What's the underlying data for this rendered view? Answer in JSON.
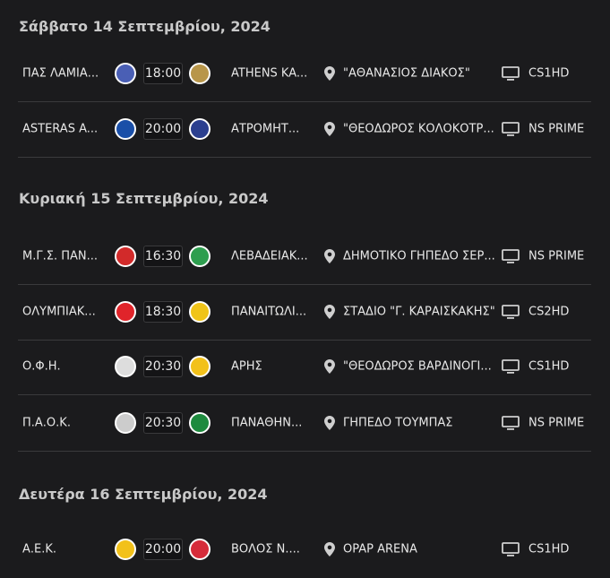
{
  "days": [
    {
      "title": "Σάββατο 14 Σεπτεμβρίου, 2024",
      "matches": [
        {
          "home": "ΠΑΣ ΛΑΜΙΑ...",
          "time": "18:00",
          "away": "ATHENS KA...",
          "venue": "\"ΑΘΑΝΑΣΙΟΣ ΔΙΑΚΟΣ\"",
          "channel": "CS1HD",
          "home_color": "#4a5fb5",
          "away_color": "#b8964a"
        },
        {
          "home": "ASTERAS A...",
          "time": "20:00",
          "away": "ΑΤΡΟΜΗΤ...",
          "venue": "\"ΘΕΟΔΩΡΟΣ ΚΟΛΟΚΟΤΡ...",
          "channel": "NS PRIME",
          "home_color": "#1a4fa8",
          "away_color": "#2b3f8f"
        }
      ]
    },
    {
      "title": "Κυριακή 15 Σεπτεμβρίου, 2024",
      "matches": [
        {
          "home": "Μ.Γ.Σ. ΠΑΝ...",
          "time": "16:30",
          "away": "ΛΕΒΑΔΕΙΑΚ...",
          "venue": "ΔΗΜΟΤΙΚΟ ΓΗΠΕΔΟ ΣΕΡ...",
          "channel": "NS PRIME",
          "home_color": "#d22a2a",
          "away_color": "#2e9e4f"
        },
        {
          "home": "ΟΛΥΜΠΙΑΚ...",
          "time": "18:30",
          "away": "ΠΑΝΑΙΤΩΛΙ...",
          "venue": "ΣΤΑΔΙΟ \"Γ. ΚΑΡΑΙΣΚΑΚΗΣ\"",
          "channel": "CS2HD",
          "home_color": "#e0242a",
          "away_color": "#f0c419"
        },
        {
          "home": "Ο.Φ.Η.",
          "time": "20:30",
          "away": "ΑΡΗΣ",
          "venue": "\"ΘΕΟΔΩΡΟΣ ΒΑΡΔΙΝΟΓΙ...",
          "channel": "CS1HD",
          "home_color": "#dddddd",
          "away_color": "#f2c11a"
        },
        {
          "home": "Π.Α.Ο.Κ.",
          "time": "20:30",
          "away": "ΠΑΝΑΘΗΝ...",
          "venue": "ΓΗΠΕΔΟ ΤΟΥΜΠΑΣ",
          "channel": "NS PRIME",
          "home_color": "#cccccc",
          "away_color": "#1e8a3e"
        }
      ]
    },
    {
      "title": "Δευτέρα 16 Σεπτεμβρίου, 2024",
      "matches": [
        {
          "home": "Α.Ε.Κ.",
          "time": "20:00",
          "away": "ΒΟΛΟΣ Ν....",
          "venue": "OPAP ARENA",
          "channel": "CS1HD",
          "home_color": "#f2c11a",
          "away_color": "#d62b3a"
        }
      ]
    }
  ]
}
